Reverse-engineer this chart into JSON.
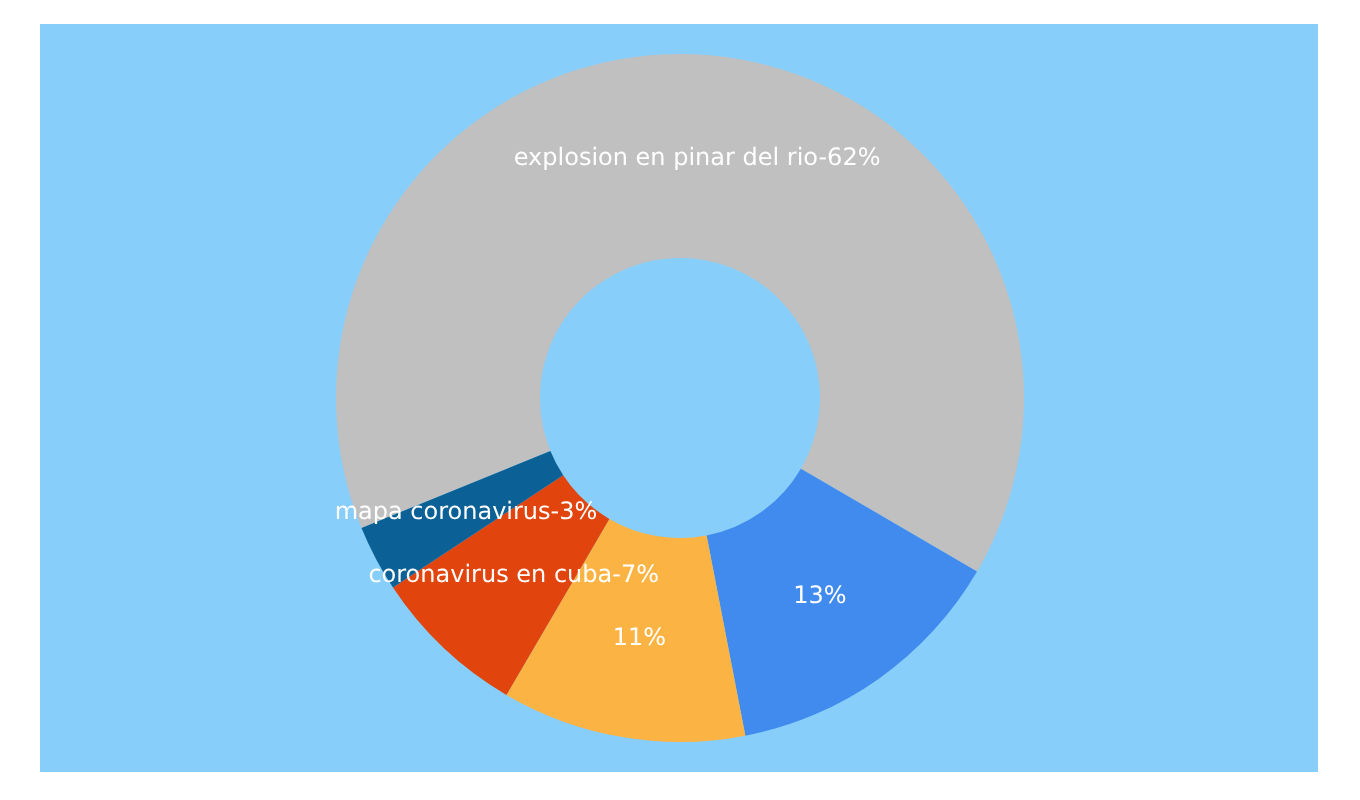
{
  "chart_data": {
    "type": "donut",
    "categories": [
      "explosion en pinar del rio-",
      null,
      null,
      "coronavirus en cuba-",
      "mapa coronavirus-"
    ],
    "values": [
      62,
      13,
      11,
      7,
      3
    ],
    "colors": [
      "#c0c0c0",
      "#418bee",
      "#fbb443",
      "#e1440d",
      "#0b6195"
    ],
    "value_labels": [
      "62%",
      "13%",
      "11%",
      "7%",
      "3%"
    ]
  }
}
